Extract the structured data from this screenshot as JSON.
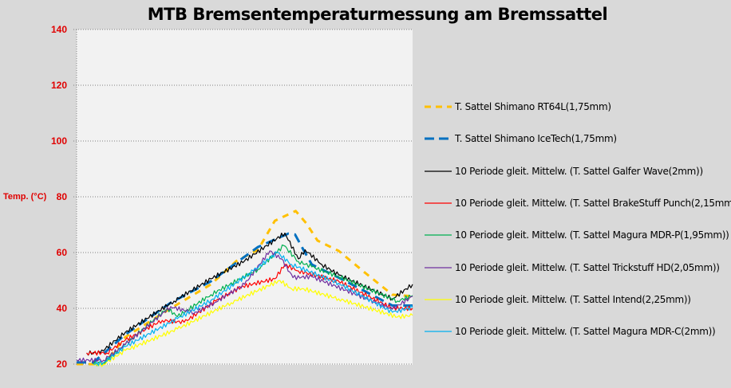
{
  "chart_data": {
    "type": "line",
    "title": "MTB Bremsentemperaturmessung am Bremssattel",
    "xlabel": "",
    "ylabel": "Temp. (°C)",
    "ylim": [
      20,
      140
    ],
    "xlim": [
      0,
      100
    ],
    "yticks": [
      "20",
      "40",
      "60",
      "80",
      "100",
      "120",
      "140"
    ],
    "grid": true,
    "legend_position": "right",
    "series": [
      {
        "name": "T. Sattel Shimano RT64L(1,75mm)",
        "color": "#ffc000",
        "dash": "8,7",
        "width": 3,
        "x": [
          0,
          8,
          14.5,
          28,
          40,
          47.6,
          54,
          59,
          65.2,
          68.3,
          71.7,
          78,
          86,
          94,
          100
        ],
        "y": [
          20,
          20,
          29.7,
          40,
          48.6,
          57,
          61,
          71.4,
          74.9,
          70.6,
          64.3,
          60.6,
          52.6,
          44.9,
          44.3
        ]
      },
      {
        "name": "T. Sattel Shimano IceTech(1,75mm)",
        "color": "#0070c0",
        "dash": "12,7",
        "width": 3,
        "x": [
          0,
          5,
          14.5,
          28,
          40,
          54,
          63,
          65,
          67.5,
          70,
          78,
          94,
          100
        ],
        "y": [
          20.6,
          20.6,
          30.6,
          42,
          49.7,
          62,
          66.8,
          66.5,
          61,
          55.7,
          51,
          41,
          41
        ]
      },
      {
        "name": "10 Periode gleit. Mittelw.  (T. Sattel Galfer Wave(2mm))",
        "color": "#000000",
        "dash": "",
        "width": 1.2,
        "x": [
          3,
          7,
          14.5,
          29,
          40,
          50,
          62,
          66,
          68,
          73,
          78,
          94,
          100
        ],
        "y": [
          24,
          24,
          31.4,
          42.6,
          50.6,
          57,
          67,
          57.7,
          61,
          55.7,
          52,
          43.4,
          48.6
        ]
      },
      {
        "name": "10 Periode gleit. Mittelw.  (T. Sattel BrakeStuff Punch(2,15mm))",
        "color": "#ff0000",
        "dash": "",
        "width": 1.2,
        "x": [
          3,
          9,
          14.5,
          25.5,
          32,
          41.4,
          49,
          59,
          62,
          66,
          78,
          94,
          100
        ],
        "y": [
          24,
          24,
          28.6,
          35.7,
          35,
          42.6,
          47.7,
          50.6,
          55.7,
          53.4,
          49.7,
          40,
          40
        ]
      },
      {
        "name": "10 Periode gleit. Mittelw.  (T. Sattel Magura  MDR-P(1,95mm))",
        "color": "#00b050",
        "dash": "",
        "width": 1.2,
        "x": [
          5,
          8,
          14.5,
          27,
          30,
          40,
          54,
          61.7,
          66,
          70,
          78,
          95.5,
          100
        ],
        "y": [
          20,
          20.5,
          27,
          40,
          37,
          44.9,
          54,
          62.5,
          56.8,
          54.9,
          51.4,
          42.6,
          44.6
        ]
      },
      {
        "name": "10 Periode gleit. Mittelw.  (T. Sattel Trickstuff HD(2,05mm))",
        "color": "#7030a0",
        "dash": "",
        "width": 1.2,
        "x": [
          0,
          8,
          14.5,
          28,
          35,
          41,
          50,
          57.5,
          61,
          64.4,
          70,
          94,
          100
        ],
        "y": [
          21.4,
          21.4,
          27,
          40.6,
          38.3,
          42,
          48.6,
          60.6,
          57.7,
          51,
          51.4,
          39.7,
          44.3
        ]
      },
      {
        "name": "10 Periode gleit. Mittelw.  (T. Sattel Intend(2,25mm))",
        "color": "#ffff00",
        "dash": "",
        "width": 1.2,
        "x": [
          5,
          8,
          14.5,
          30,
          46,
          60.5,
          64,
          67.6,
          78,
          95.5,
          100
        ],
        "y": [
          19.5,
          20,
          24.9,
          32.6,
          42,
          50,
          47,
          47,
          43.4,
          36.9,
          37.5
        ]
      },
      {
        "name": "10 Periode gleit. Mittelw.  (T. Sattel Magura  MDR-C(2mm))",
        "color": "#00b0f0",
        "dash": "",
        "width": 1.2,
        "x": [
          5,
          8,
          14.5,
          30,
          40,
          52.6,
          59.7,
          64,
          78,
          94,
          100
        ],
        "y": [
          20,
          20.5,
          26.3,
          36.3,
          42.9,
          53.4,
          60,
          55.7,
          49,
          38.6,
          40.3
        ]
      }
    ]
  }
}
